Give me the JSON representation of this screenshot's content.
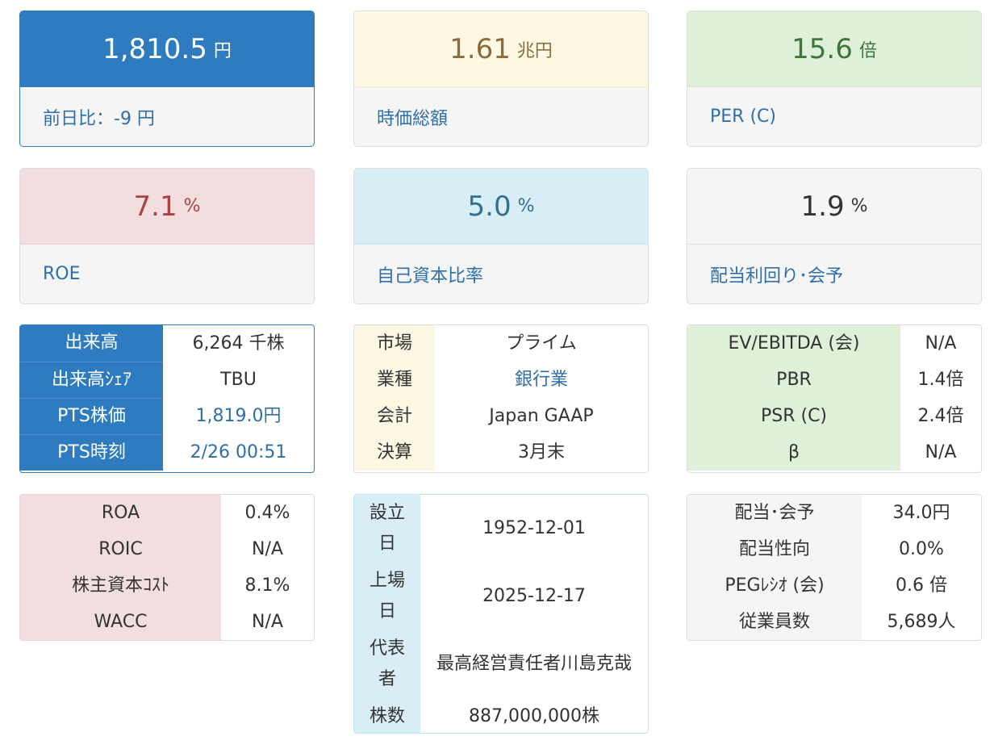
{
  "cards": [
    {
      "value": "1,810.5",
      "unit": "円",
      "label": "前日比：-9 円"
    },
    {
      "value": "1.61",
      "unit": "兆円",
      "label": "時価総額"
    },
    {
      "value": "15.6",
      "unit": "倍",
      "label": "PER (C)"
    },
    {
      "value": "7.1",
      "unit": "%",
      "label": "ROE"
    },
    {
      "value": "5.0",
      "unit": "%",
      "label": "自己資本比率"
    },
    {
      "value": "1.9",
      "unit": "%",
      "label": "配当利回り･会予"
    }
  ],
  "trading": [
    {
      "k": "出来高",
      "v": "6,264 千株"
    },
    {
      "k": "出来高ｼｪｱ",
      "v": "TBU"
    },
    {
      "k": "PTS株価",
      "v": "1,819.0円"
    },
    {
      "k": "PTS時刻",
      "v": "2/26 00:51"
    }
  ],
  "company": [
    {
      "k": "市場",
      "v": "プライム"
    },
    {
      "k": "業種",
      "v": "銀行業"
    },
    {
      "k": "会計",
      "v": "Japan GAAP"
    },
    {
      "k": "決算",
      "v": "3月末"
    }
  ],
  "valuation": [
    {
      "k": "EV/EBITDA (会)",
      "v": "N/A"
    },
    {
      "k": "PBR",
      "v": "1.4倍"
    },
    {
      "k": "PSR (C)",
      "v": "2.4倍"
    },
    {
      "k": "β",
      "v": "N/A"
    }
  ],
  "returns": [
    {
      "k": "ROA",
      "v": "0.4%"
    },
    {
      "k": "ROIC",
      "v": "N/A"
    },
    {
      "k": "株主資本ｺｽﾄ",
      "v": "8.1%"
    },
    {
      "k": "WACC",
      "v": "N/A"
    }
  ],
  "profile": [
    {
      "k": "設立日",
      "v": "1952-12-01"
    },
    {
      "k": "上場日",
      "v": "2025-12-17"
    },
    {
      "k": "代表者",
      "v": "最高経営責任者川島克哉"
    },
    {
      "k": "株数",
      "v": "887,000,000株"
    }
  ],
  "dividend": [
    {
      "k": "配当･会予",
      "v": "34.0円"
    },
    {
      "k": "配当性向",
      "v": "0.0%"
    },
    {
      "k": "PEGﾚｼｵ (会)",
      "v": "0.6 倍"
    },
    {
      "k": "従業員数",
      "v": "5,689人"
    }
  ]
}
